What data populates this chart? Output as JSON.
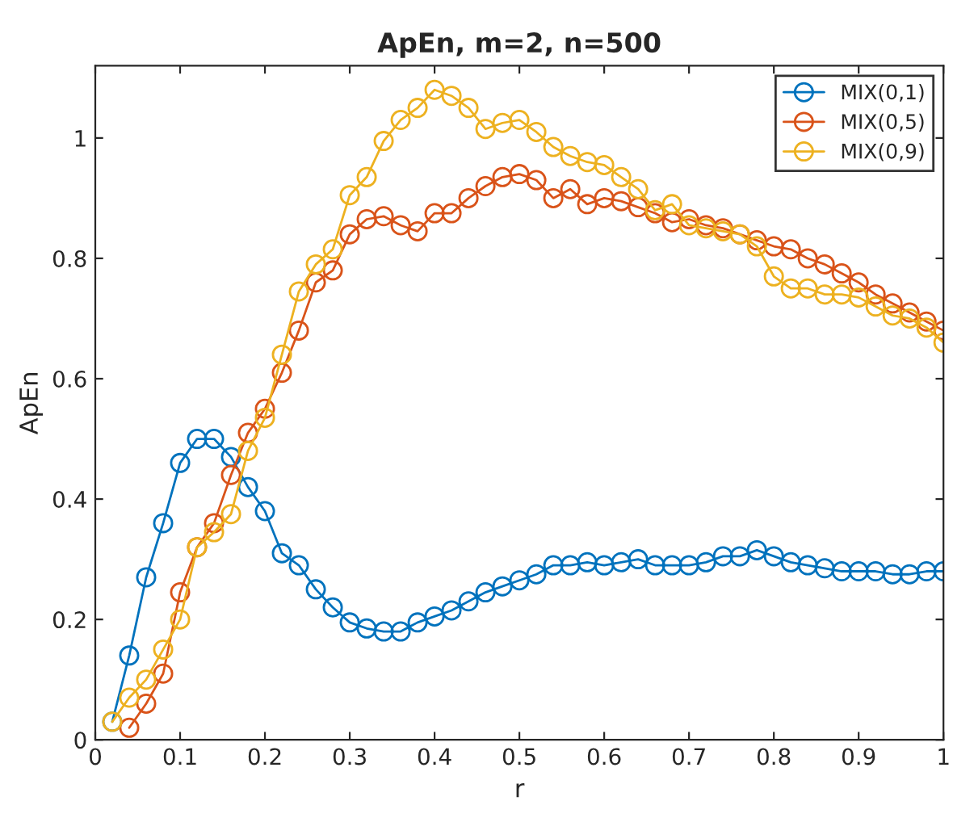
{
  "chart_data": {
    "type": "line",
    "title": "ApEn, m=2, n=500",
    "xlabel": "r",
    "ylabel": "ApEn",
    "xlim": [
      0,
      1
    ],
    "ylim": [
      0,
      1.12
    ],
    "xticks": [
      0,
      0.1,
      0.2,
      0.3,
      0.4,
      0.5,
      0.6,
      0.7,
      0.8,
      0.9,
      1
    ],
    "yticks": [
      0,
      0.2,
      0.4,
      0.6,
      0.8,
      1
    ],
    "grid": false,
    "legend": "top right",
    "marker": "circle",
    "line_style": "solid",
    "series": [
      {
        "name": "MIX(0,1)",
        "color": "#0072bd",
        "x": [
          0.02,
          0.04,
          0.06,
          0.08,
          0.1,
          0.12,
          0.14,
          0.16,
          0.18,
          0.2,
          0.22,
          0.24,
          0.26,
          0.28,
          0.3,
          0.32,
          0.34,
          0.36,
          0.38,
          0.4,
          0.42,
          0.44,
          0.46,
          0.48,
          0.5,
          0.52,
          0.54,
          0.56,
          0.58,
          0.6,
          0.62,
          0.64,
          0.66,
          0.68,
          0.7,
          0.72,
          0.74,
          0.76,
          0.78,
          0.8,
          0.82,
          0.84,
          0.86,
          0.88,
          0.9,
          0.92,
          0.94,
          0.96,
          0.98,
          1
        ],
        "values": [
          0.03,
          0.14,
          0.27,
          0.36,
          0.46,
          0.5,
          0.5,
          0.47,
          0.42,
          0.38,
          0.31,
          0.29,
          0.25,
          0.22,
          0.195,
          0.185,
          0.18,
          0.18,
          0.195,
          0.205,
          0.215,
          0.23,
          0.245,
          0.255,
          0.265,
          0.275,
          0.29,
          0.29,
          0.295,
          0.29,
          0.295,
          0.3,
          0.29,
          0.29,
          0.29,
          0.295,
          0.305,
          0.305,
          0.315,
          0.305,
          0.295,
          0.29,
          0.285,
          0.28,
          0.28,
          0.28,
          0.275,
          0.275,
          0.28,
          0.28
        ]
      },
      {
        "name": "MIX(0,5)",
        "color": "#d95319",
        "x": [
          0.04,
          0.06,
          0.08,
          0.1,
          0.12,
          0.14,
          0.16,
          0.18,
          0.2,
          0.22,
          0.24,
          0.26,
          0.28,
          0.3,
          0.32,
          0.34,
          0.36,
          0.38,
          0.4,
          0.42,
          0.44,
          0.46,
          0.48,
          0.5,
          0.52,
          0.54,
          0.56,
          0.58,
          0.6,
          0.62,
          0.64,
          0.66,
          0.68,
          0.7,
          0.72,
          0.74,
          0.76,
          0.78,
          0.8,
          0.82,
          0.84,
          0.86,
          0.88,
          0.9,
          0.92,
          0.94,
          0.96,
          0.98,
          1
        ],
        "values": [
          0.02,
          0.06,
          0.11,
          0.245,
          0.32,
          0.36,
          0.44,
          0.51,
          0.55,
          0.61,
          0.68,
          0.76,
          0.78,
          0.84,
          0.865,
          0.87,
          0.855,
          0.845,
          0.875,
          0.875,
          0.9,
          0.92,
          0.935,
          0.94,
          0.93,
          0.9,
          0.915,
          0.89,
          0.9,
          0.895,
          0.885,
          0.875,
          0.86,
          0.865,
          0.855,
          0.85,
          0.84,
          0.83,
          0.82,
          0.815,
          0.8,
          0.79,
          0.775,
          0.76,
          0.74,
          0.725,
          0.71,
          0.695,
          0.68
        ]
      },
      {
        "name": "MIX(0,9)",
        "color": "#edb120",
        "x": [
          0.02,
          0.04,
          0.06,
          0.08,
          0.1,
          0.12,
          0.14,
          0.16,
          0.18,
          0.2,
          0.22,
          0.24,
          0.26,
          0.28,
          0.3,
          0.32,
          0.34,
          0.36,
          0.38,
          0.4,
          0.42,
          0.44,
          0.46,
          0.48,
          0.5,
          0.52,
          0.54,
          0.56,
          0.58,
          0.6,
          0.62,
          0.64,
          0.66,
          0.68,
          0.7,
          0.72,
          0.74,
          0.76,
          0.78,
          0.8,
          0.82,
          0.84,
          0.86,
          0.88,
          0.9,
          0.92,
          0.94,
          0.96,
          0.98,
          1
        ],
        "values": [
          0.03,
          0.07,
          0.1,
          0.15,
          0.2,
          0.32,
          0.345,
          0.375,
          0.48,
          0.535,
          0.64,
          0.745,
          0.79,
          0.815,
          0.905,
          0.935,
          0.995,
          1.03,
          1.05,
          1.08,
          1.07,
          1.05,
          1.015,
          1.025,
          1.03,
          1.01,
          0.985,
          0.97,
          0.96,
          0.955,
          0.935,
          0.915,
          0.88,
          0.89,
          0.855,
          0.85,
          0.845,
          0.84,
          0.82,
          0.77,
          0.75,
          0.75,
          0.74,
          0.74,
          0.735,
          0.72,
          0.705,
          0.7,
          0.685,
          0.66
        ]
      }
    ]
  }
}
